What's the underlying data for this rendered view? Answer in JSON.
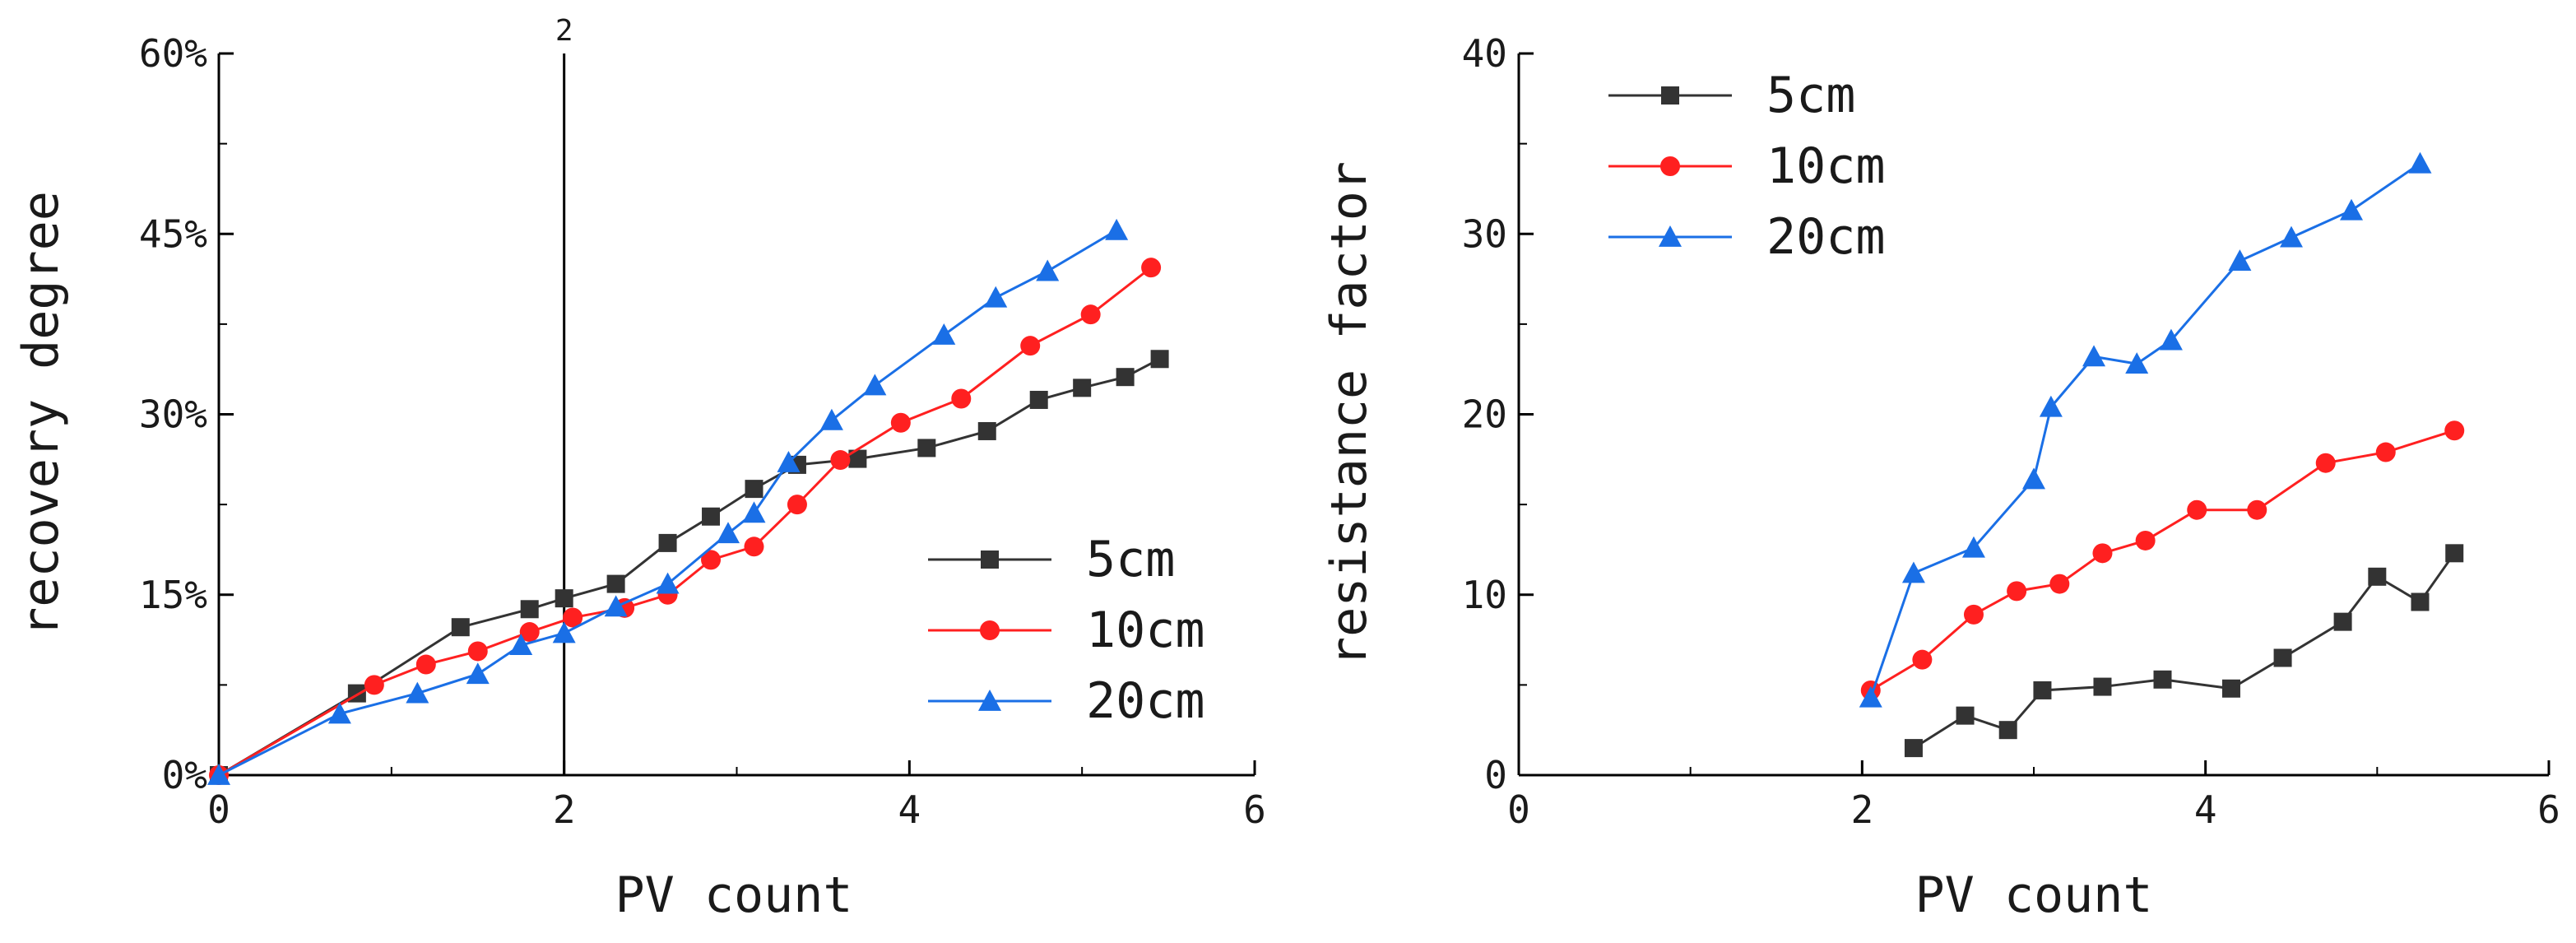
{
  "chart_data": [
    {
      "type": "line",
      "xlabel": "PV count",
      "ylabel": "recovery degree",
      "xlim": [
        0,
        6
      ],
      "ylim": [
        0,
        60
      ],
      "xticks": [
        0,
        2,
        4,
        6
      ],
      "xtick_labels": [
        "0",
        "2",
        "4",
        "6"
      ],
      "yticks": [
        0,
        15,
        30,
        45,
        60
      ],
      "ytick_labels": [
        "0%",
        "15%",
        "30%",
        "45%",
        "60%"
      ],
      "vline": {
        "x": 2,
        "label": "2"
      },
      "legend": "bottom-right",
      "series": [
        {
          "name": "5cm",
          "color": "#333333",
          "marker": "square",
          "x": [
            0,
            0.8,
            1.4,
            1.8,
            2.0,
            2.3,
            2.6,
            2.85,
            3.1,
            3.35,
            3.7,
            4.1,
            4.45,
            4.75,
            5.0,
            5.25,
            5.45
          ],
          "y": [
            0,
            6.8,
            12.3,
            13.8,
            14.7,
            15.9,
            19.3,
            21.5,
            23.8,
            25.8,
            26.3,
            27.2,
            28.6,
            31.2,
            32.2,
            33.1,
            34.6
          ]
        },
        {
          "name": "10cm",
          "color": "#ff2020",
          "marker": "circle",
          "x": [
            0,
            0.9,
            1.2,
            1.5,
            1.8,
            2.05,
            2.35,
            2.6,
            2.85,
            3.1,
            3.35,
            3.6,
            3.95,
            4.3,
            4.7,
            5.05,
            5.4
          ],
          "y": [
            0,
            7.5,
            9.2,
            10.3,
            11.9,
            13.1,
            13.9,
            15.0,
            17.9,
            19.0,
            22.5,
            26.2,
            29.3,
            31.3,
            35.7,
            38.3,
            42.2
          ]
        },
        {
          "name": "20cm",
          "color": "#1a6fe6",
          "marker": "triangle",
          "x": [
            0,
            0.7,
            1.15,
            1.5,
            1.75,
            2.0,
            2.3,
            2.6,
            2.95,
            3.1,
            3.3,
            3.55,
            3.8,
            4.2,
            4.5,
            4.8,
            5.2
          ],
          "y": [
            0,
            5.1,
            6.8,
            8.4,
            10.8,
            11.8,
            14.0,
            15.9,
            20.1,
            21.8,
            26.0,
            29.5,
            32.4,
            36.6,
            39.7,
            41.9,
            45.3
          ]
        }
      ]
    },
    {
      "type": "line",
      "xlabel": "PV count",
      "ylabel": "resistance factor",
      "xlim": [
        0,
        6
      ],
      "ylim": [
        0,
        40
      ],
      "xticks": [
        0,
        2,
        4,
        6
      ],
      "xtick_labels": [
        "0",
        "2",
        "4",
        "6"
      ],
      "yticks": [
        0,
        10,
        20,
        30,
        40
      ],
      "ytick_labels": [
        "0",
        "10",
        "20",
        "30",
        "40"
      ],
      "legend": "top-left",
      "series": [
        {
          "name": "5cm",
          "color": "#333333",
          "marker": "square",
          "x": [
            2.3,
            2.6,
            2.85,
            3.05,
            3.4,
            3.75,
            4.15,
            4.45,
            4.8,
            5.0,
            5.25,
            5.45
          ],
          "y": [
            1.5,
            3.3,
            2.5,
            4.7,
            4.9,
            5.3,
            4.8,
            6.5,
            8.5,
            11.0,
            9.6,
            12.3
          ]
        },
        {
          "name": "10cm",
          "color": "#ff2020",
          "marker": "circle",
          "x": [
            2.05,
            2.35,
            2.65,
            2.9,
            3.15,
            3.4,
            3.65,
            3.95,
            4.3,
            4.7,
            5.05,
            5.45
          ],
          "y": [
            4.7,
            6.4,
            8.9,
            10.2,
            10.6,
            12.3,
            13.0,
            14.7,
            14.7,
            17.3,
            17.9,
            19.1
          ]
        },
        {
          "name": "20cm",
          "color": "#1a6fe6",
          "marker": "triangle",
          "x": [
            2.05,
            2.3,
            2.65,
            3.0,
            3.1,
            3.35,
            3.6,
            3.8,
            4.2,
            4.5,
            4.85,
            5.25
          ],
          "y": [
            4.3,
            11.2,
            12.6,
            16.4,
            20.4,
            23.2,
            22.8,
            24.1,
            28.5,
            29.8,
            31.3,
            33.9
          ]
        }
      ]
    }
  ]
}
